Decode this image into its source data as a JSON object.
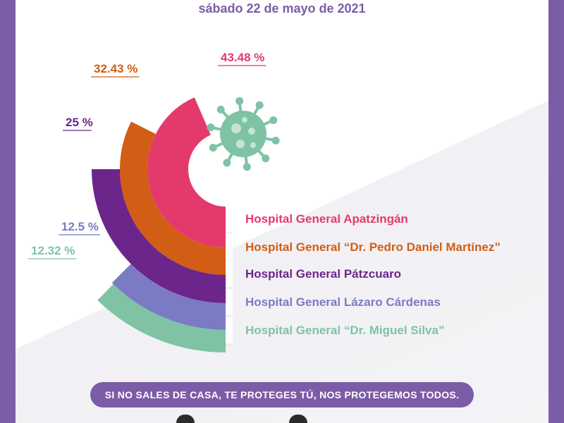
{
  "header": {
    "date": "sábado 22 de mayo de 2021"
  },
  "chart_data": {
    "type": "radial-bar",
    "title": "",
    "series": [
      {
        "label": "Hospital General Apatzingán",
        "value": 43.48,
        "value_label": "43.48 %",
        "color": "#e43a6b"
      },
      {
        "label": "Hospital General “Dr. Pedro Daniel Martínez”",
        "value": 32.43,
        "value_label": "32.43 %",
        "color": "#d25d14"
      },
      {
        "label": "Hospital General Pátzcuaro",
        "value": 25,
        "value_label": "25 %",
        "color": "#6c258b"
      },
      {
        "label": "Hospital General Lázaro Cárdenas",
        "value": 12.5,
        "value_label": "12.5 %",
        "color": "#7b7bc4"
      },
      {
        "label": "Hospital General “Dr. Miguel Silva”",
        "value": 12.32,
        "value_label": "12.32 %",
        "color": "#7fc3a4"
      }
    ]
  },
  "footer": {
    "banner": "SI NO SALES DE CASA, TE PROTEGES TÚ, NOS PROTEGEMOS TODOS."
  },
  "colors": {
    "frame": "#7b5ca6",
    "virus": "#7fc3a4"
  },
  "icons": {
    "virus": "coronavirus-icon",
    "logos": "government-logos"
  }
}
